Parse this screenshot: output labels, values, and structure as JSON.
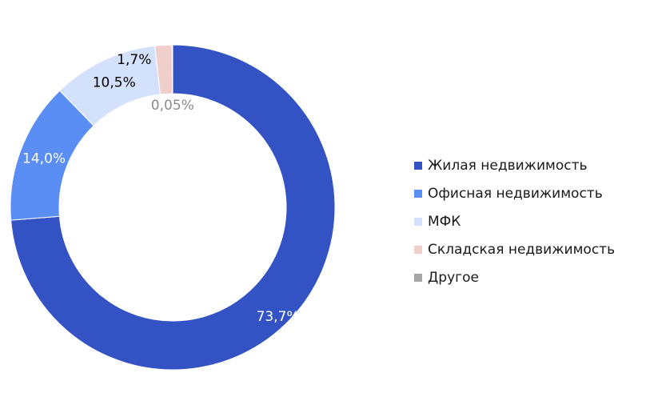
{
  "chart_data": {
    "type": "pie",
    "donut": true,
    "categories": [
      "Жилая недвижимость",
      "Офисная недвижимость",
      "МФК",
      "Складская недвижимость",
      "Другое"
    ],
    "values": [
      73.7,
      14.0,
      10.5,
      1.7,
      0.05
    ],
    "value_labels": [
      "73,7%",
      "14,0%",
      "10,5%",
      "1,7%",
      "0,05%"
    ],
    "colors": [
      "#3353c4",
      "#5b8ef4",
      "#d4e1fc",
      "#f0cfcb",
      "#a5a5a5"
    ],
    "label_colors": [
      "#ffffff",
      "#ffffff",
      "#000000",
      "#000000",
      "#8c8c8c"
    ],
    "legend_position": "right",
    "title": ""
  }
}
